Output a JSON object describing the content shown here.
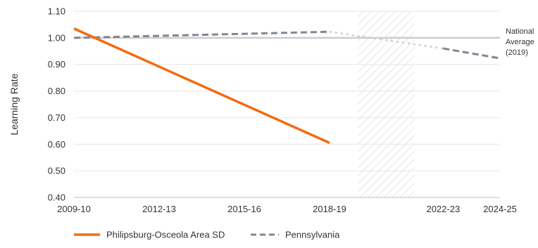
{
  "chart_data": {
    "type": "line",
    "title": "",
    "xlabel": "",
    "ylabel": "Learning Rate",
    "x_ticks": [
      "2009-10",
      "2012-13",
      "2015-16",
      "2018-19",
      "2022-23",
      "2024-25"
    ],
    "x_range": [
      2009,
      2024
    ],
    "y_ticks": [
      "0.40",
      "0.50",
      "0.60",
      "0.70",
      "0.80",
      "0.90",
      "1.00",
      "1.10"
    ],
    "ylim": [
      0.4,
      1.1
    ],
    "grid": "horizontal",
    "legend_position": "bottom-left",
    "series": [
      {
        "name": "Philipsburg-Osceola Area SD",
        "color": "#f26b0f",
        "style": "solid",
        "points": [
          {
            "x": 2009,
            "y": 1.035
          },
          {
            "x": 2018,
            "y": 0.605
          }
        ]
      },
      {
        "name": "Pennsylvania",
        "color": "#7d8896",
        "style": "dashed",
        "points": [
          {
            "x": 2009,
            "y": 1.0
          },
          {
            "x": 2018,
            "y": 1.023
          }
        ],
        "projection_points": [
          {
            "x": 2018,
            "y": 1.023
          },
          {
            "x": 2022,
            "y": 0.96
          }
        ],
        "late_points": [
          {
            "x": 2022,
            "y": 0.96
          },
          {
            "x": 2024,
            "y": 0.923
          }
        ]
      }
    ],
    "reference_line": {
      "value": 1.0,
      "label_lines": [
        "National",
        "Average",
        "(2019)"
      ],
      "color": "#cccccc"
    },
    "shaded_region": {
      "x_start": 2019,
      "x_end": 2021,
      "pattern": "diagonal-hatch"
    }
  }
}
